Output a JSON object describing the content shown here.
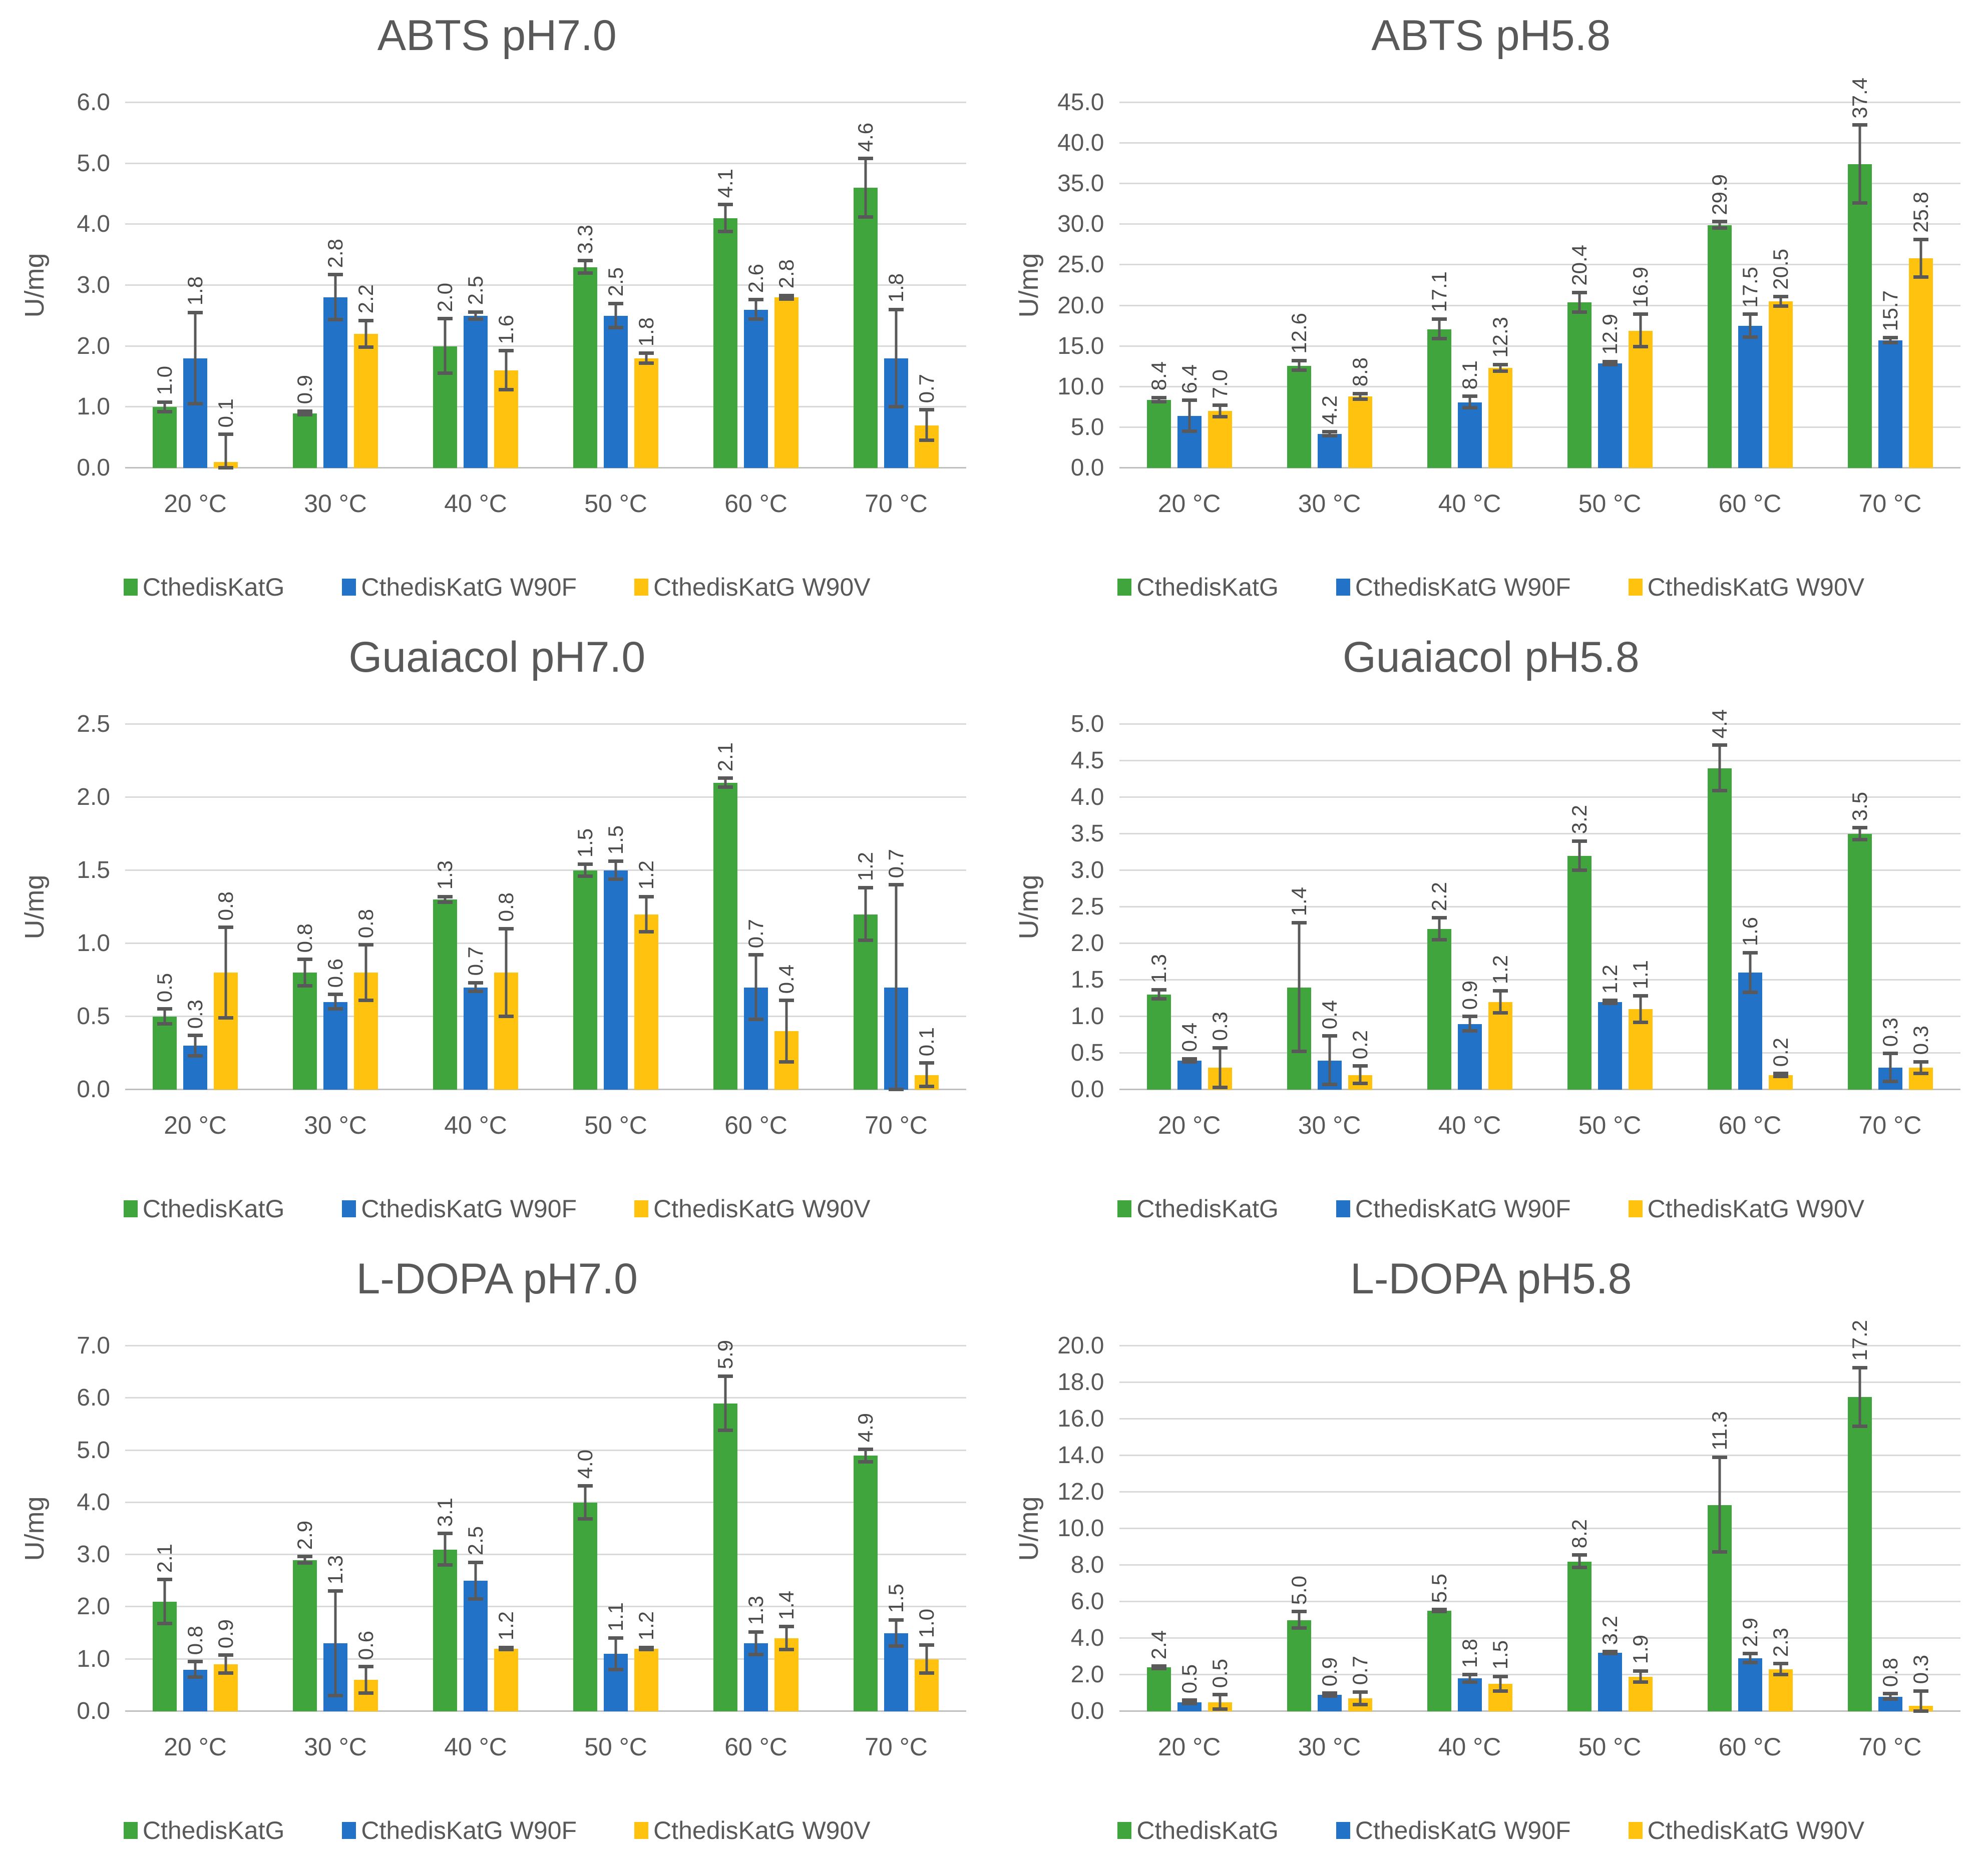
{
  "style": {
    "background": "#FFFFFF",
    "series_colors": [
      "#3FA53C",
      "#2272C8",
      "#FFC30F"
    ],
    "grid_color": "#D9D9D9",
    "axis_line_color": "#BFBFBF",
    "error_bar_color": "#595959",
    "text_color": "#595959",
    "data_label_color": "#4A4A4A",
    "title_color": "#595959"
  },
  "legend": {
    "items": [
      {
        "label": "CthedisKatG",
        "color": "#3FA53C"
      },
      {
        "label": "CthedisKatG W90F",
        "color": "#2272C8"
      },
      {
        "label": "CthedisKatG W90V",
        "color": "#FFC30F"
      }
    ]
  },
  "chart_data": [
    {
      "type": "bar",
      "title": "ABTS pH7.0",
      "ylabel": "U/mg",
      "ylim": [
        0,
        6.0
      ],
      "ytick_step": 1.0,
      "grid": true,
      "legend_position": "bottom",
      "categories": [
        "20 °C",
        "30 °C",
        "40 °C",
        "50 °C",
        "60 °C",
        "70 °C"
      ],
      "series": [
        {
          "name": "CthedisKatG",
          "color": "#3FA53C",
          "values": [
            1.0,
            0.9,
            2.0,
            3.3,
            4.1,
            4.6
          ],
          "errors": [
            0.08,
            0.03,
            0.45,
            0.1,
            0.22,
            0.48
          ]
        },
        {
          "name": "CthedisKatG W90F",
          "color": "#2272C8",
          "values": [
            1.8,
            2.8,
            2.5,
            2.5,
            2.6,
            1.8
          ],
          "errors": [
            0.75,
            0.37,
            0.06,
            0.2,
            0.16,
            0.8
          ]
        },
        {
          "name": "CthedisKatG W90V",
          "color": "#FFC30F",
          "values": [
            0.1,
            2.2,
            1.6,
            1.8,
            2.8,
            0.7
          ],
          "errors": [
            0.45,
            0.22,
            0.32,
            0.08,
            0.03,
            0.25
          ]
        }
      ]
    },
    {
      "type": "bar",
      "title": "ABTS pH5.8",
      "ylabel": "U/mg",
      "ylim": [
        0,
        45.0
      ],
      "ytick_step": 5.0,
      "grid": true,
      "legend_position": "bottom",
      "categories": [
        "20 °C",
        "30 °C",
        "40 °C",
        "50 °C",
        "60 °C",
        "70 °C"
      ],
      "series": [
        {
          "name": "CthedisKatG",
          "color": "#3FA53C",
          "values": [
            8.4,
            12.6,
            17.1,
            20.4,
            29.9,
            37.4
          ],
          "errors": [
            0.25,
            0.6,
            1.2,
            1.2,
            0.4,
            4.8
          ]
        },
        {
          "name": "CthedisKatG W90F",
          "color": "#2272C8",
          "values": [
            6.4,
            4.2,
            8.1,
            12.9,
            17.5,
            15.7
          ],
          "errors": [
            1.9,
            0.25,
            0.7,
            0.2,
            1.4,
            0.3
          ]
        },
        {
          "name": "CthedisKatG W90V",
          "color": "#FFC30F",
          "values": [
            7.0,
            8.8,
            12.3,
            16.9,
            20.5,
            25.8
          ],
          "errors": [
            0.7,
            0.35,
            0.4,
            2.0,
            0.6,
            2.3
          ]
        }
      ]
    },
    {
      "type": "bar",
      "title": "Guaiacol pH7.0",
      "ylabel": "U/mg",
      "ylim": [
        0,
        2.5
      ],
      "ytick_step": 0.5,
      "grid": true,
      "legend_position": "bottom",
      "categories": [
        "20 °C",
        "30 °C",
        "40 °C",
        "50 °C",
        "60 °C",
        "70 °C"
      ],
      "series": [
        {
          "name": "CthedisKatG",
          "color": "#3FA53C",
          "values": [
            0.5,
            0.8,
            1.3,
            1.5,
            2.1,
            1.2
          ],
          "errors": [
            0.05,
            0.09,
            0.02,
            0.04,
            0.03,
            0.18
          ]
        },
        {
          "name": "CthedisKatG W90F",
          "color": "#2272C8",
          "values": [
            0.3,
            0.6,
            0.7,
            1.5,
            0.7,
            0.7
          ],
          "errors": [
            0.07,
            0.05,
            0.03,
            0.06,
            0.22,
            0.7
          ]
        },
        {
          "name": "CthedisKatG W90V",
          "color": "#FFC30F",
          "values": [
            0.8,
            0.8,
            0.8,
            1.2,
            0.4,
            0.1
          ],
          "errors": [
            0.31,
            0.19,
            0.3,
            0.12,
            0.21,
            0.08
          ]
        }
      ]
    },
    {
      "type": "bar",
      "title": "Guaiacol pH5.8",
      "ylabel": "U/mg",
      "ylim": [
        0,
        5.0
      ],
      "ytick_step": 0.5,
      "grid": true,
      "legend_position": "bottom",
      "categories": [
        "20 °C",
        "30 °C",
        "40 °C",
        "50 °C",
        "60 °C",
        "70 °C"
      ],
      "series": [
        {
          "name": "CthedisKatG",
          "color": "#3FA53C",
          "values": [
            1.3,
            1.4,
            2.2,
            3.2,
            4.4,
            3.5
          ],
          "errors": [
            0.06,
            0.88,
            0.15,
            0.2,
            0.31,
            0.08
          ]
        },
        {
          "name": "CthedisKatG W90F",
          "color": "#2272C8",
          "values": [
            0.4,
            0.4,
            0.9,
            1.2,
            1.6,
            0.3
          ],
          "errors": [
            0.02,
            0.33,
            0.1,
            0.02,
            0.27,
            0.19
          ]
        },
        {
          "name": "CthedisKatG W90V",
          "color": "#FFC30F",
          "values": [
            0.3,
            0.2,
            1.2,
            1.1,
            0.2,
            0.3
          ],
          "errors": [
            0.27,
            0.12,
            0.15,
            0.18,
            0.02,
            0.08
          ]
        }
      ]
    },
    {
      "type": "bar",
      "title": "L-DOPA pH7.0",
      "ylabel": "U/mg",
      "ylim": [
        0,
        7.0
      ],
      "ytick_step": 1.0,
      "grid": true,
      "legend_position": "bottom",
      "categories": [
        "20 °C",
        "30 °C",
        "40 °C",
        "50 °C",
        "60 °C",
        "70 °C"
      ],
      "series": [
        {
          "name": "CthedisKatG",
          "color": "#3FA53C",
          "values": [
            2.1,
            2.9,
            3.1,
            4.0,
            5.9,
            4.9
          ],
          "errors": [
            0.42,
            0.06,
            0.3,
            0.32,
            0.52,
            0.12
          ]
        },
        {
          "name": "CthedisKatG W90F",
          "color": "#2272C8",
          "values": [
            0.8,
            1.3,
            2.5,
            1.1,
            1.3,
            1.5
          ],
          "errors": [
            0.15,
            1.0,
            0.35,
            0.3,
            0.22,
            0.25
          ]
        },
        {
          "name": "CthedisKatG W90V",
          "color": "#FFC30F",
          "values": [
            0.9,
            0.6,
            1.2,
            1.2,
            1.4,
            1.0
          ],
          "errors": [
            0.17,
            0.25,
            0.02,
            0.02,
            0.22,
            0.27
          ]
        }
      ]
    },
    {
      "type": "bar",
      "title": "L-DOPA pH5.8",
      "ylabel": "U/mg",
      "ylim": [
        0,
        20.0
      ],
      "ytick_step": 2.0,
      "grid": true,
      "legend_position": "bottom",
      "categories": [
        "20 °C",
        "30 °C",
        "40 °C",
        "50 °C",
        "60 °C",
        "70 °C"
      ],
      "series": [
        {
          "name": "CthedisKatG",
          "color": "#3FA53C",
          "values": [
            2.4,
            5.0,
            5.5,
            8.2,
            11.3,
            17.2
          ],
          "errors": [
            0.06,
            0.45,
            0.06,
            0.35,
            2.6,
            1.6
          ]
        },
        {
          "name": "CthedisKatG W90F",
          "color": "#2272C8",
          "values": [
            0.5,
            0.9,
            1.8,
            3.2,
            2.9,
            0.8
          ],
          "errors": [
            0.1,
            0.08,
            0.2,
            0.06,
            0.25,
            0.15
          ]
        },
        {
          "name": "CthedisKatG W90V",
          "color": "#FFC30F",
          "values": [
            0.5,
            0.7,
            1.5,
            1.9,
            2.3,
            0.3
          ],
          "errors": [
            0.4,
            0.35,
            0.4,
            0.3,
            0.3,
            0.8
          ]
        }
      ]
    }
  ]
}
